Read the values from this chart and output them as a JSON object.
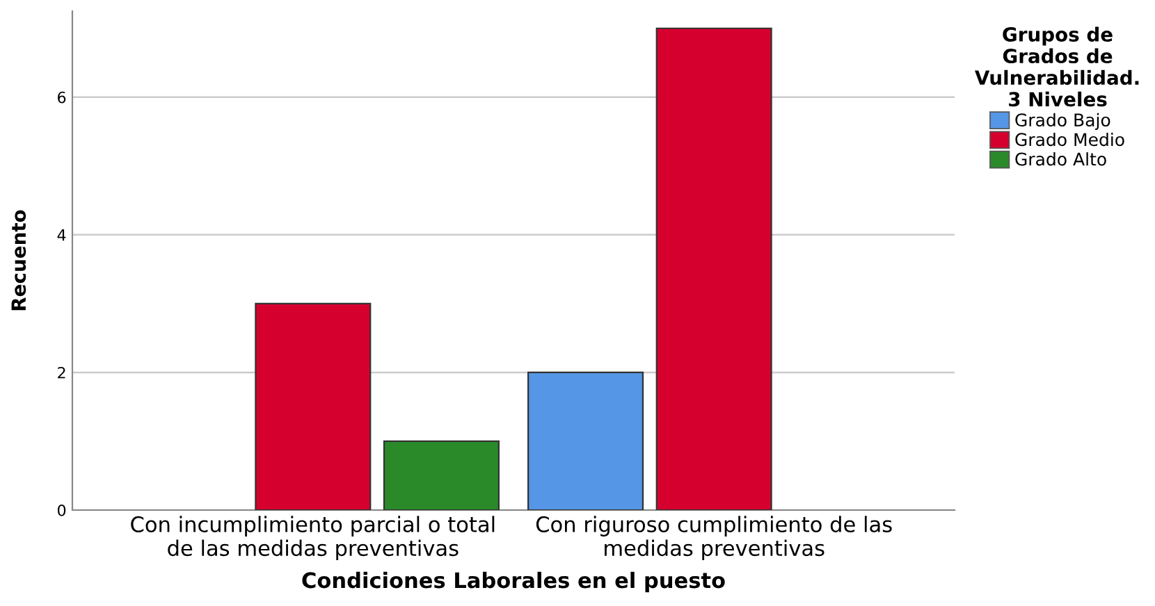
{
  "chart_data": {
    "type": "bar",
    "xlabel": "Condiciones Laborales en el puesto",
    "ylabel": "Recuento",
    "legend_title": "Grupos de\nGrados de\nVulnerabilidad.\n3 Niveles",
    "categories": [
      "Con incumplimiento parcial o total\nde las medidas preventivas",
      "Con riguroso cumplimiento de las\nmedidas preventivas"
    ],
    "series": [
      {
        "name": "Grado Bajo",
        "color": "#5596e6",
        "values": [
          null,
          2
        ]
      },
      {
        "name": "Grado Medio",
        "color": "#d6002f",
        "values": [
          3,
          7
        ]
      },
      {
        "name": "Grado Alto",
        "color": "#2a8a2a",
        "values": [
          1,
          null
        ]
      }
    ],
    "ylim": [
      0,
      7.25
    ],
    "yticks": [
      0,
      2,
      4,
      6
    ],
    "grid": "y",
    "legend": "top right"
  }
}
